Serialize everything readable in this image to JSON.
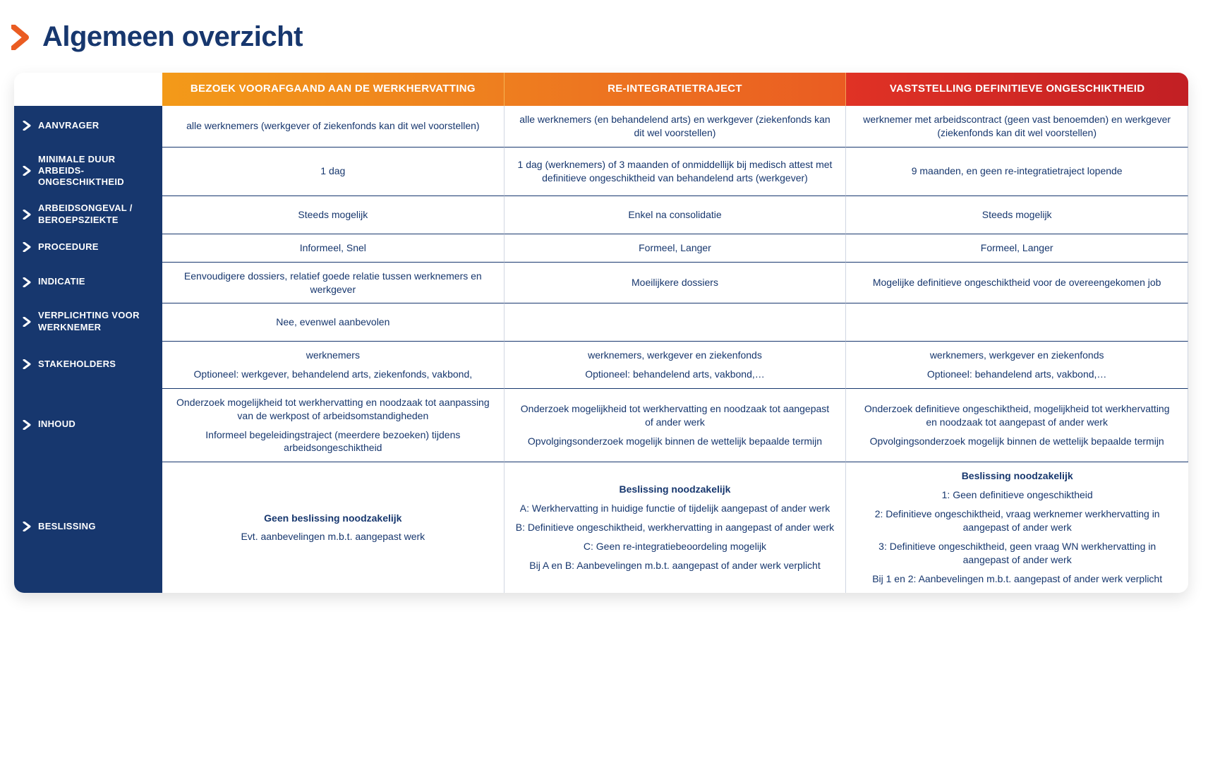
{
  "title": "Algemeen overzicht",
  "colors": {
    "navy": "#17376e",
    "header_gradient": [
      "#f39a19",
      "#ee7e1f",
      "#ea5c22",
      "#e03225",
      "#c21f24"
    ],
    "cell_text": "#17376e",
    "border": "#17376e",
    "background": "#ffffff"
  },
  "columns": [
    "BEZOEK VOORAFGAAND AAN DE WERKHERVATTING",
    "RE-INTEGRATIETRAJECT",
    "VASTSTELLING DEFINITIEVE ONGESCHIKTHEID"
  ],
  "rows": [
    {
      "label": "AANVRAGER",
      "cells": [
        [
          "alle werknemers (werkgever of ziekenfonds kan dit wel voorstellen)"
        ],
        [
          "alle werknemers (en behandelend arts) en werkgever (ziekenfonds kan dit wel voorstellen)"
        ],
        [
          "werknemer met arbeidscontract (geen vast benoemden) en werkgever (ziekenfonds kan dit wel voorstellen)"
        ]
      ]
    },
    {
      "label": "MINIMALE DUUR ARBEIDS-ONGESCHIKTHEID",
      "cells": [
        [
          "1 dag"
        ],
        [
          "1 dag (werknemers) of 3 maanden of onmiddellijk bij medisch attest met definitieve ongeschiktheid van behandelend arts (werkgever)"
        ],
        [
          "9 maanden, en geen re-integratietraject lopende"
        ]
      ]
    },
    {
      "label": "ARBEIDSONGEVAL / BEROEPSZIEKTE",
      "cells": [
        [
          "Steeds mogelijk"
        ],
        [
          "Enkel na consolidatie"
        ],
        [
          "Steeds mogelijk"
        ]
      ]
    },
    {
      "label": "PROCEDURE",
      "cells": [
        [
          "Informeel, Snel"
        ],
        [
          "Formeel, Langer"
        ],
        [
          "Formeel, Langer"
        ]
      ]
    },
    {
      "label": "INDICATIE",
      "cells": [
        [
          "Eenvoudigere dossiers, relatief goede relatie tussen werknemers en werkgever"
        ],
        [
          "Moeilijkere dossiers"
        ],
        [
          "Mogelijke definitieve ongeschiktheid voor de overeengekomen job"
        ]
      ]
    },
    {
      "label": "VERPLICHTING VOOR WERKNEMER",
      "cells": [
        [
          "Nee, evenwel aanbevolen"
        ],
        [
          ""
        ],
        [
          ""
        ]
      ]
    },
    {
      "label": "STAKEHOLDERS",
      "cells": [
        [
          "werknemers",
          "Optioneel: werkgever, behandelend arts, ziekenfonds, vakbond,"
        ],
        [
          "werknemers, werkgever en ziekenfonds",
          "Optioneel: behandelend arts, vakbond,…"
        ],
        [
          "werknemers, werkgever en ziekenfonds",
          "Optioneel: behandelend arts, vakbond,…"
        ]
      ]
    },
    {
      "label": "INHOUD",
      "cells": [
        [
          "Onderzoek mogelijkheid tot werkhervatting en noodzaak tot aanpassing van de werkpost of arbeidsomstandigheden",
          "Informeel begeleidingstraject (meerdere bezoeken) tijdens arbeidsongeschiktheid"
        ],
        [
          "Onderzoek mogelijkheid tot werkhervatting en noodzaak tot aangepast of ander werk",
          "Opvolgingsonderzoek mogelijk binnen de wettelijk bepaalde termijn"
        ],
        [
          "Onderzoek definitieve ongeschiktheid, mogelijkheid tot werkhervatting en noodzaak tot aangepast of ander werk",
          "Opvolgingsonderzoek mogelijk binnen de wettelijk bepaalde termijn"
        ]
      ]
    },
    {
      "label": "BESLISSING",
      "cells": [
        {
          "headline": "Geen beslissing noodzakelijk",
          "lines": [
            "Evt. aanbevelingen m.b.t. aangepast werk"
          ]
        },
        {
          "headline": "Beslissing noodzakelijk",
          "lines": [
            "A: Werkhervatting in huidige functie of tijdelijk aangepast of ander werk",
            "B: Definitieve ongeschiktheid, werkhervatting in aangepast of ander werk",
            "C: Geen re-integratiebeoordeling mogelijk",
            "Bij A en B: Aanbevelingen m.b.t. aangepast of ander werk verplicht"
          ]
        },
        {
          "headline": "Beslissing noodzakelijk",
          "lines": [
            "1: Geen definitieve ongeschiktheid",
            "2: Definitieve ongeschiktheid, vraag werknemer werkhervatting in aangepast of ander werk",
            "3: Definitieve ongeschiktheid, geen vraag WN werkhervatting in aangepast of ander werk",
            "Bij 1 en 2: Aanbevelingen m.b.t. aangepast of ander werk verplicht"
          ]
        }
      ]
    }
  ]
}
